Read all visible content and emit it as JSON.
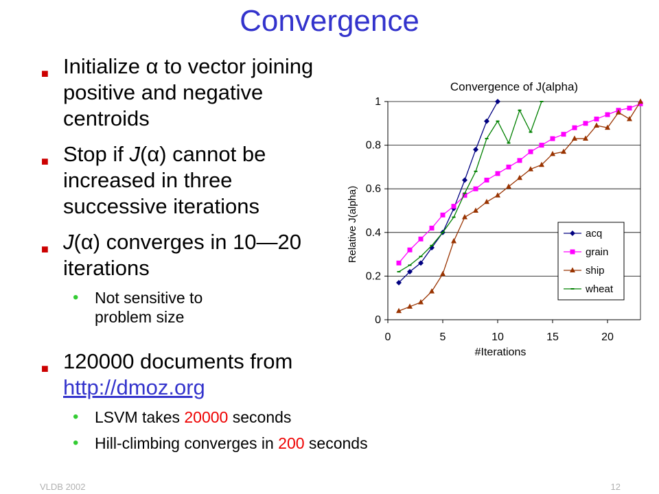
{
  "slide": {
    "title": "Convergence",
    "bullet1": [
      "Initialize ",
      "α",
      " to vector joining positive and negative centroids"
    ],
    "bullet2": [
      "Stop if ",
      "J",
      "(",
      "α",
      ") cannot be increased in three successive iterations"
    ],
    "bullet3": [
      "J",
      "(",
      "α",
      ") converges in 10—20 iterations"
    ],
    "sub1": "Not sensitive to problem size",
    "bullet4_text": "120000 documents from ",
    "bullet4_link": "http://dmoz.org",
    "sub2": [
      "LSVM takes ",
      "20000",
      " seconds"
    ],
    "sub3": [
      "Hill-climbing converges in ",
      "200",
      " seconds"
    ],
    "footer_left": "VLDB 2002",
    "footer_right": "12",
    "bullet_mark": "■",
    "sub_mark": "•"
  },
  "chart_data": {
    "type": "line",
    "title": "Convergence of J(alpha)",
    "xlabel": "#Iterations",
    "ylabel": "Relative J(alpha)",
    "xlim": [
      0,
      23
    ],
    "ylim": [
      0,
      1
    ],
    "xticks": [
      0,
      5,
      10,
      15,
      20
    ],
    "yticks": [
      0,
      0.2,
      0.4,
      0.6,
      0.8,
      1
    ],
    "ytick_labels": [
      "0",
      "0.2",
      "0.4",
      "0.6",
      "0.8",
      "1"
    ],
    "grid": "horizontal",
    "legend_position": "bottom-right",
    "series": [
      {
        "name": "acq",
        "color": "#000080",
        "marker": "diamond",
        "x": [
          1,
          2,
          3,
          4,
          5,
          6,
          7,
          8,
          9,
          10
        ],
        "y": [
          0.17,
          0.22,
          0.26,
          0.33,
          0.4,
          0.51,
          0.64,
          0.78,
          0.91,
          1.0
        ]
      },
      {
        "name": "grain",
        "color": "#ff00ff",
        "marker": "square",
        "x": [
          1,
          2,
          3,
          4,
          5,
          6,
          7,
          8,
          9,
          10,
          11,
          12,
          13,
          14,
          15,
          16,
          17,
          18,
          19,
          20,
          21,
          22,
          23
        ],
        "y": [
          0.26,
          0.32,
          0.37,
          0.42,
          0.48,
          0.52,
          0.57,
          0.6,
          0.64,
          0.67,
          0.7,
          0.73,
          0.77,
          0.8,
          0.83,
          0.85,
          0.88,
          0.9,
          0.92,
          0.94,
          0.96,
          0.97,
          0.99
        ]
      },
      {
        "name": "ship",
        "color": "#993300",
        "marker": "triangle",
        "x": [
          1,
          2,
          3,
          4,
          5,
          6,
          7,
          8,
          9,
          10,
          11,
          12,
          13,
          14,
          15,
          16,
          17,
          18,
          19,
          20,
          21,
          22,
          23
        ],
        "y": [
          0.04,
          0.06,
          0.08,
          0.13,
          0.21,
          0.36,
          0.47,
          0.5,
          0.54,
          0.57,
          0.61,
          0.65,
          0.69,
          0.71,
          0.76,
          0.77,
          0.83,
          0.83,
          0.89,
          0.88,
          0.95,
          0.92,
          1.0
        ]
      },
      {
        "name": "wheat",
        "color": "#008000",
        "marker": "dash",
        "x": [
          1,
          2,
          3,
          4,
          5,
          6,
          7,
          8,
          9,
          10,
          11,
          12,
          13,
          14
        ],
        "y": [
          0.22,
          0.25,
          0.29,
          0.34,
          0.4,
          0.47,
          0.58,
          0.68,
          0.83,
          0.91,
          0.81,
          0.96,
          0.86,
          1.0
        ]
      }
    ]
  }
}
